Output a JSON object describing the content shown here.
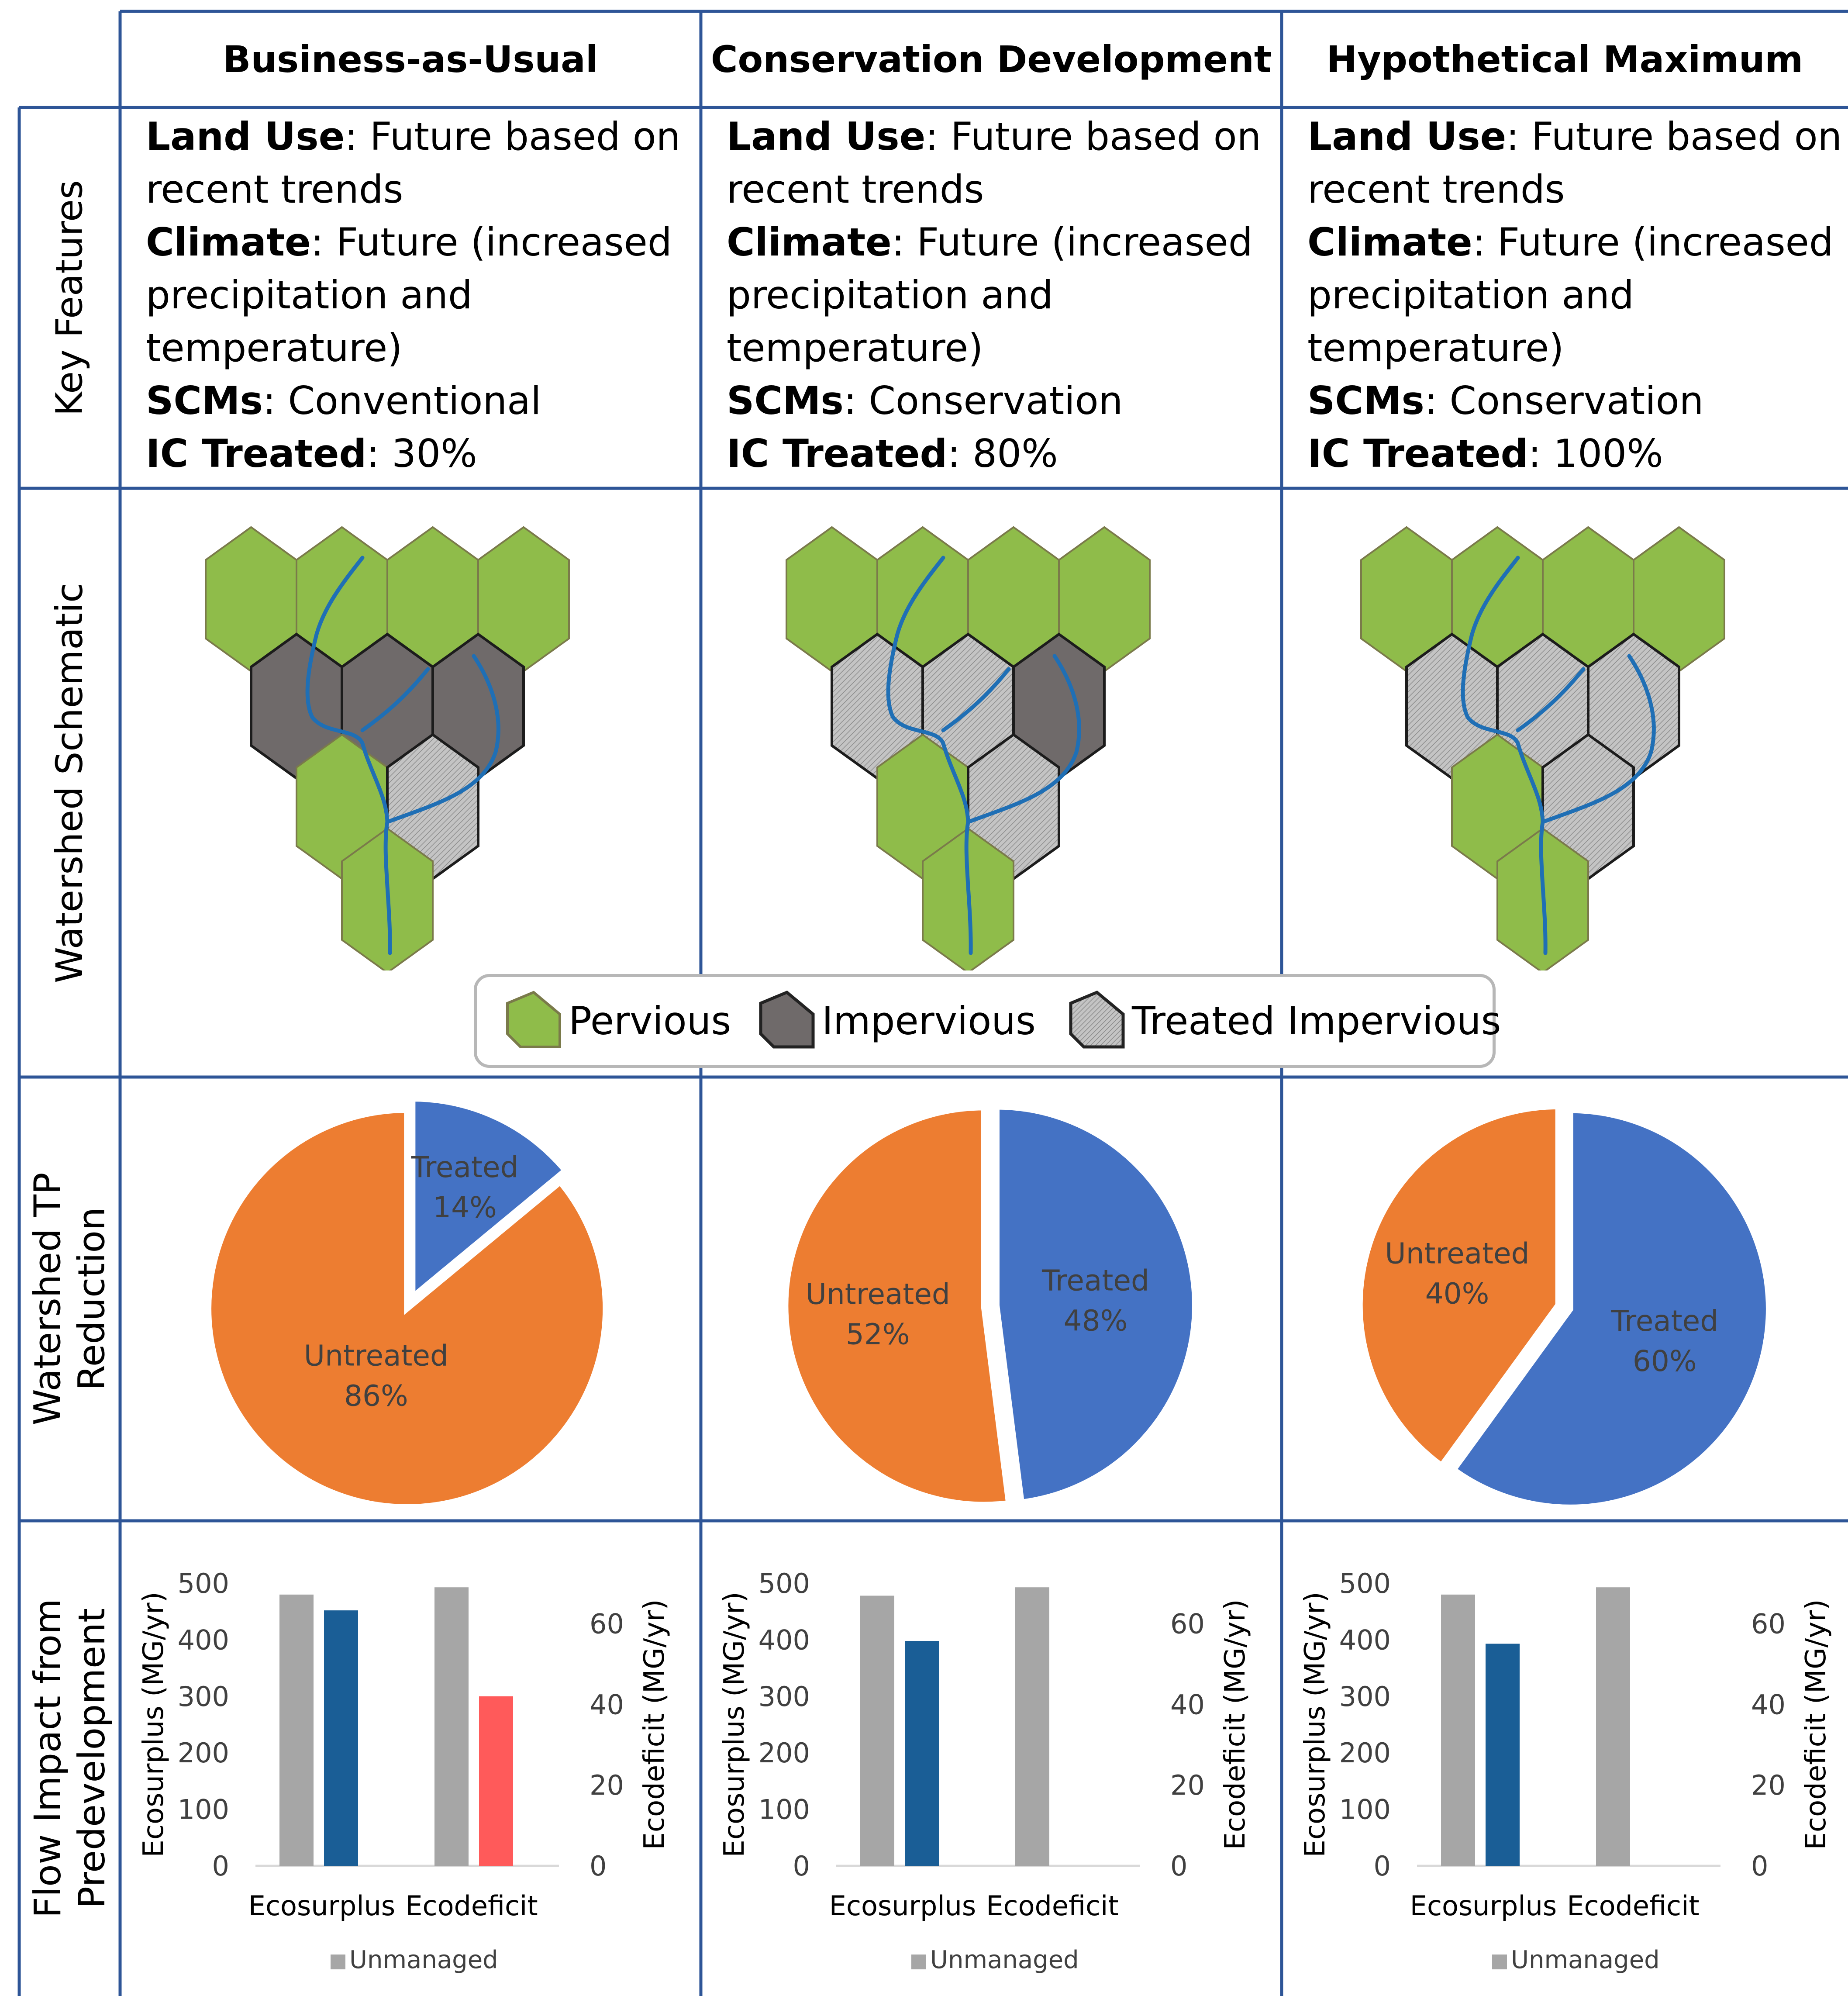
{
  "columns": [
    "Business-as-Usual",
    "Conservation Development",
    "Hypothetical Maximum"
  ],
  "row_labels": {
    "key_features": "Key Features",
    "watershed_schematic": "Watershed Schematic",
    "tp_reduction_line1": "Watershed TP",
    "tp_reduction_line2": "Reduction",
    "flow_impact_line1": "Flow Impact from",
    "flow_impact_line2": "Predevelopment"
  },
  "features": [
    {
      "land_use_label": "Land Use",
      "land_use_value_1": ": Future based on",
      "land_use_value_2": "recent trends",
      "climate_label": "Climate",
      "climate_value_1": ": Future (increased",
      "climate_value_2": "precipitation and",
      "climate_value_3": "temperature)",
      "scms_label": "SCMs",
      "scms_value": ": Conventional",
      "ic_label": "IC Treated",
      "ic_value": ": 30%"
    },
    {
      "land_use_label": "Land Use",
      "land_use_value_1": ": Future based on",
      "land_use_value_2": "recent trends",
      "climate_label": "Climate",
      "climate_value_1": ": Future (increased",
      "climate_value_2": "precipitation and",
      "climate_value_3": "temperature)",
      "scms_label": "SCMs",
      "scms_value": ": Conservation",
      "ic_label": "IC Treated",
      "ic_value": ": 80%"
    },
    {
      "land_use_label": "Land Use",
      "land_use_value_1": ": Future based on",
      "land_use_value_2": "recent trends",
      "climate_label": "Climate",
      "climate_value_1": ": Future (increased",
      "climate_value_2": "precipitation and",
      "climate_value_3": "temperature)",
      "scms_label": "SCMs",
      "scms_value": ": Conservation",
      "ic_label": "IC Treated",
      "ic_value": ": 100%"
    }
  ],
  "schematics": [
    {
      "cells": [
        "pervious",
        "pervious",
        "pervious",
        "pervious",
        "impervious",
        "impervious",
        "impervious",
        "pervious",
        "treated",
        "pervious"
      ]
    },
    {
      "cells": [
        "pervious",
        "pervious",
        "pervious",
        "pervious",
        "treated",
        "treated",
        "impervious",
        "pervious",
        "treated",
        "pervious"
      ]
    },
    {
      "cells": [
        "pervious",
        "pervious",
        "pervious",
        "pervious",
        "treated",
        "treated",
        "treated",
        "pervious",
        "treated",
        "pervious"
      ]
    }
  ],
  "legend": {
    "pervious": "Pervious",
    "impervious": "Impervious",
    "treated": "Treated Impervious"
  },
  "colors": {
    "pervious": "#8fbc4a",
    "pervious_stroke": "#7a7a4a",
    "impervious": "#6f6a6a",
    "treated": "#c4c4c4",
    "stream": "#1f6fb5",
    "treated_slice": "#4472c4",
    "untreated_slice": "#ed7d31",
    "unmanaged_bar": "#a6a6a6",
    "ecosurplus_bar": "#1a5e96",
    "ecodeficit_bar": "#ff5a5a"
  },
  "chart_data": [
    {
      "type": "pie",
      "slices": [
        {
          "label": "Treated",
          "percent_label": "14%",
          "value": 14
        },
        {
          "label": "Untreated",
          "percent_label": "86%",
          "value": 86
        }
      ]
    },
    {
      "type": "pie",
      "slices": [
        {
          "label": "Treated",
          "percent_label": "48%",
          "value": 48
        },
        {
          "label": "Untreated",
          "percent_label": "52%",
          "value": 52
        }
      ]
    },
    {
      "type": "pie",
      "slices": [
        {
          "label": "Treated",
          "percent_label": "60%",
          "value": 60
        },
        {
          "label": "Untreated",
          "percent_label": "40%",
          "value": 40
        }
      ]
    },
    {
      "type": "bar",
      "categories": [
        "Ecosurplus",
        "Ecodeficit"
      ],
      "ylabel_left": "Ecosurplus (MG/yr)",
      "ylabel_right": "Ecodeficit (MG/yr)",
      "left_ticks": [
        "0",
        "100",
        "200",
        "300",
        "400",
        "500"
      ],
      "right_ticks": [
        "0",
        "20",
        "40",
        "60"
      ],
      "ylim_left": [
        0,
        500
      ],
      "ylim_right": [
        0,
        70
      ],
      "legend": "Unmanaged",
      "unmanaged": {
        "ecosurplus": 480,
        "ecodeficit": 69
      },
      "scenario": {
        "ecosurplus": 452,
        "ecodeficit": 42
      }
    },
    {
      "type": "bar",
      "categories": [
        "Ecosurplus",
        "Ecodeficit"
      ],
      "ylabel_left": "Ecosurplus (MG/yr)",
      "ylabel_right": "Ecodeficit (MG/yr)",
      "left_ticks": [
        "0",
        "100",
        "200",
        "300",
        "400",
        "500"
      ],
      "right_ticks": [
        "0",
        "20",
        "40",
        "60"
      ],
      "ylim_left": [
        0,
        500
      ],
      "ylim_right": [
        0,
        70
      ],
      "legend": "Unmanaged",
      "unmanaged": {
        "ecosurplus": 478,
        "ecodeficit": 69
      },
      "scenario": {
        "ecosurplus": 398,
        "ecodeficit": 0
      }
    },
    {
      "type": "bar",
      "categories": [
        "Ecosurplus",
        "Ecodeficit"
      ],
      "ylabel_left": "Ecosurplus (MG/yr)",
      "ylabel_right": "Ecodeficit (MG/yr)",
      "left_ticks": [
        "0",
        "100",
        "200",
        "300",
        "400",
        "500"
      ],
      "right_ticks": [
        "0",
        "20",
        "40",
        "60"
      ],
      "ylim_left": [
        0,
        500
      ],
      "ylim_right": [
        0,
        70
      ],
      "legend": "Unmanaged",
      "unmanaged": {
        "ecosurplus": 480,
        "ecodeficit": 69
      },
      "scenario": {
        "ecosurplus": 393,
        "ecodeficit": 0
      }
    }
  ]
}
